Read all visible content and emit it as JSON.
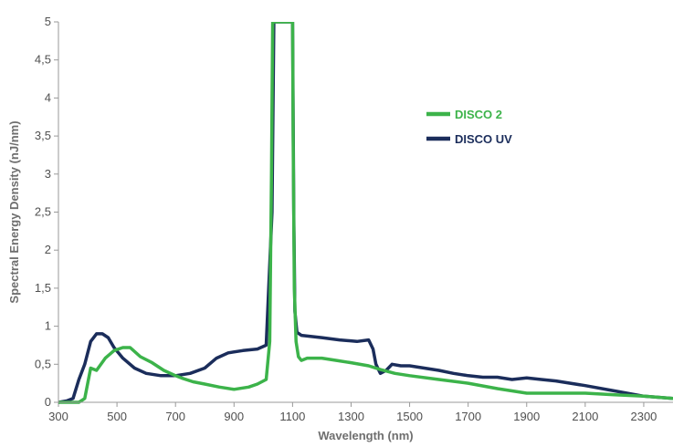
{
  "chart_data": {
    "type": "line",
    "title": "",
    "xlabel": "Wavelength (nm)",
    "ylabel": "Spectral Energy Density (nJ/nm)",
    "xlim": [
      300,
      2400
    ],
    "ylim": [
      0,
      5
    ],
    "grid": false,
    "legend_position": "top-right",
    "x_ticks": [
      "300",
      "500",
      "700",
      "900",
      "1100",
      "1300",
      "1500",
      "1700",
      "1900",
      "2100",
      "2300"
    ],
    "y_ticks": [
      "0",
      "0,5",
      "1",
      "1,5",
      "2",
      "2,5",
      "3",
      "3,5",
      "4",
      "4,5",
      "5"
    ],
    "series": [
      {
        "name": "DISCO 2",
        "color": "#3cb34a",
        "x": [
          300,
          370,
          390,
          410,
          430,
          460,
          490,
          520,
          545,
          580,
          620,
          660,
          700,
          720,
          760,
          800,
          850,
          900,
          950,
          980,
          1010,
          1022,
          1028,
          1032,
          1035,
          1100,
          1102,
          1106,
          1112,
          1120,
          1130,
          1150,
          1200,
          1250,
          1300,
          1360,
          1400,
          1450,
          1500,
          1600,
          1700,
          1800,
          1900,
          2000,
          2100,
          2200,
          2300,
          2400
        ],
        "y": [
          0,
          0,
          0.05,
          0.45,
          0.42,
          0.58,
          0.68,
          0.72,
          0.72,
          0.6,
          0.52,
          0.42,
          0.35,
          0.32,
          0.27,
          0.24,
          0.2,
          0.17,
          0.2,
          0.24,
          0.3,
          0.8,
          3,
          5,
          5,
          5,
          3.5,
          1.5,
          0.8,
          0.6,
          0.55,
          0.58,
          0.58,
          0.55,
          0.52,
          0.48,
          0.43,
          0.38,
          0.35,
          0.3,
          0.25,
          0.18,
          0.12,
          0.12,
          0.12,
          0.1,
          0.08,
          0.05
        ]
      },
      {
        "name": "DISCO UV",
        "color": "#1b2d5b",
        "x": [
          300,
          330,
          350,
          370,
          390,
          410,
          430,
          450,
          470,
          490,
          520,
          560,
          600,
          650,
          700,
          750,
          800,
          840,
          880,
          930,
          980,
          1010,
          1030,
          1036,
          1040,
          1100,
          1104,
          1108,
          1115,
          1130,
          1200,
          1260,
          1320,
          1360,
          1375,
          1385,
          1400,
          1420,
          1440,
          1470,
          1500,
          1550,
          1600,
          1650,
          1700,
          1750,
          1800,
          1850,
          1900,
          1950,
          2000,
          2100,
          2200,
          2300,
          2400
        ],
        "y": [
          0,
          0.02,
          0.05,
          0.3,
          0.5,
          0.8,
          0.9,
          0.9,
          0.85,
          0.72,
          0.58,
          0.45,
          0.38,
          0.35,
          0.35,
          0.38,
          0.45,
          0.58,
          0.65,
          0.68,
          0.7,
          0.75,
          2.5,
          5,
          5,
          5,
          2.5,
          1.2,
          0.92,
          0.88,
          0.85,
          0.82,
          0.8,
          0.82,
          0.7,
          0.5,
          0.38,
          0.42,
          0.5,
          0.48,
          0.48,
          0.45,
          0.42,
          0.38,
          0.35,
          0.33,
          0.33,
          0.3,
          0.32,
          0.3,
          0.28,
          0.22,
          0.15,
          0.08,
          0.05
        ]
      }
    ]
  }
}
